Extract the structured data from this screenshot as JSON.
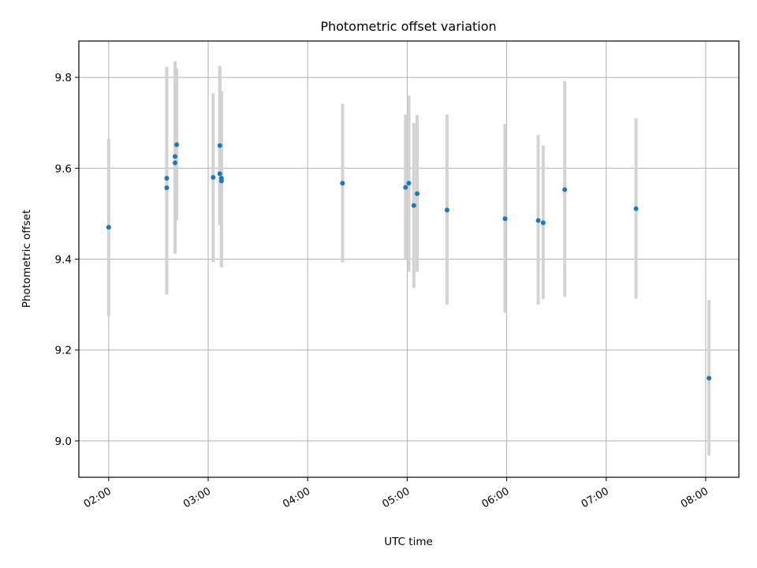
{
  "chart_data": {
    "type": "scatter",
    "title": "Photometric offset variation",
    "xlabel": "UTC time",
    "ylabel": "Photometric offset",
    "x_ticks": [
      "02:00",
      "03:00",
      "04:00",
      "05:00",
      "06:00",
      "07:00",
      "08:00"
    ],
    "y_ticks": [
      "9.0",
      "9.2",
      "9.4",
      "9.6",
      "9.8"
    ],
    "xlim": [
      "01:42",
      "08:20"
    ],
    "ylim": [
      8.92,
      9.88
    ],
    "grid": true,
    "colors": {
      "point": "#1f77b4",
      "errorbar": "#d3d3d3",
      "grid": "#b0b0b0"
    },
    "points": [
      {
        "t": "02:00",
        "y": 9.47,
        "lo": 9.275,
        "hi": 9.665
      },
      {
        "t": "02:35",
        "y": 9.557,
        "lo": 9.322,
        "hi": 9.823
      },
      {
        "t": "02:35",
        "y": 9.578,
        "lo": 9.332,
        "hi": 9.823
      },
      {
        "t": "02:40",
        "y": 9.612,
        "lo": 9.412,
        "hi": 9.835
      },
      {
        "t": "02:40",
        "y": 9.626,
        "lo": 9.415,
        "hi": 9.835
      },
      {
        "t": "02:41",
        "y": 9.652,
        "lo": 9.485,
        "hi": 9.82
      },
      {
        "t": "03:03",
        "y": 9.58,
        "lo": 9.393,
        "hi": 9.765
      },
      {
        "t": "03:07",
        "y": 9.65,
        "lo": 9.475,
        "hi": 9.825
      },
      {
        "t": "03:07",
        "y": 9.588,
        "lo": 9.478,
        "hi": 9.825
      },
      {
        "t": "03:08",
        "y": 9.578,
        "lo": 9.382,
        "hi": 9.77
      },
      {
        "t": "03:08",
        "y": 9.572,
        "lo": 9.382,
        "hi": 9.77
      },
      {
        "t": "04:21",
        "y": 9.567,
        "lo": 9.393,
        "hi": 9.742
      },
      {
        "t": "04:59",
        "y": 9.558,
        "lo": 9.4,
        "hi": 9.718
      },
      {
        "t": "05:01",
        "y": 9.567,
        "lo": 9.372,
        "hi": 9.76
      },
      {
        "t": "05:04",
        "y": 9.518,
        "lo": 9.337,
        "hi": 9.7
      },
      {
        "t": "05:06",
        "y": 9.544,
        "lo": 9.372,
        "hi": 9.717
      },
      {
        "t": "05:24",
        "y": 9.508,
        "lo": 9.3,
        "hi": 9.718
      },
      {
        "t": "05:59",
        "y": 9.489,
        "lo": 9.282,
        "hi": 9.698
      },
      {
        "t": "06:19",
        "y": 9.485,
        "lo": 9.3,
        "hi": 9.673
      },
      {
        "t": "06:22",
        "y": 9.48,
        "lo": 9.312,
        "hi": 9.65
      },
      {
        "t": "06:35",
        "y": 9.553,
        "lo": 9.317,
        "hi": 9.792
      },
      {
        "t": "07:18",
        "y": 9.511,
        "lo": 9.313,
        "hi": 9.71
      },
      {
        "t": "08:02",
        "y": 9.138,
        "lo": 8.968,
        "hi": 9.31
      }
    ]
  }
}
